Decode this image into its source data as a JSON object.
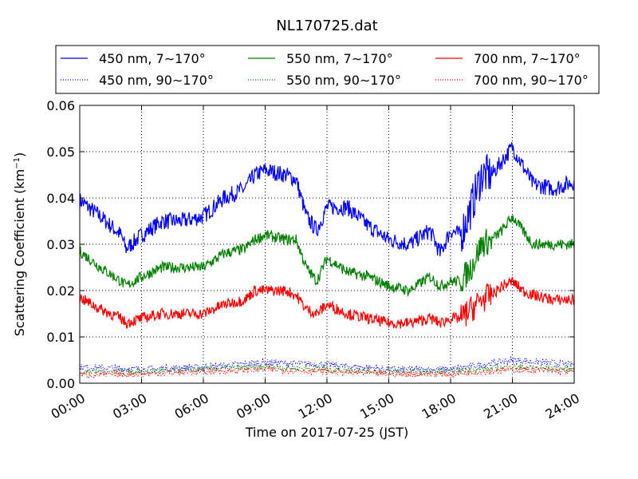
{
  "chart_data": {
    "type": "line",
    "title": "NL170725.dat",
    "xlabel": "Time on 2017-07-25 (JST)",
    "ylabel_main": "Scattering Coefficient (km",
    "ylabel_sup": "−1",
    "ylabel_end": ")",
    "x_hours_range": [
      0,
      24
    ],
    "ylim": [
      0,
      0.06
    ],
    "x_ticks": [
      "00:00",
      "03:00",
      "06:00",
      "09:00",
      "12:00",
      "15:00",
      "18:00",
      "21:00",
      "24:00"
    ],
    "y_ticks": [
      "0.00",
      "0.01",
      "0.02",
      "0.03",
      "0.04",
      "0.05",
      "0.06"
    ],
    "grid": true,
    "legend_position": "top-center above plot",
    "series": [
      {
        "name": "450 nm, 7∼170°",
        "color": "#0000ff",
        "style": "solid",
        "x": [
          "00:00",
          "01:00",
          "02:00",
          "02:15",
          "03:00",
          "04:00",
          "05:00",
          "06:00",
          "07:00",
          "08:00",
          "08:30",
          "09:00",
          "10:00",
          "10:30",
          "11:00",
          "11:30",
          "12:00",
          "13:00",
          "14:00",
          "15:00",
          "16:00",
          "17:00",
          "17:30",
          "18:00",
          "18:30",
          "19:00",
          "19:30",
          "20:00",
          "20:30",
          "21:00",
          "21:30",
          "22:00",
          "23:00",
          "24:00"
        ],
        "y": [
          0.0395,
          0.036,
          0.032,
          0.029,
          0.032,
          0.035,
          0.035,
          0.036,
          0.04,
          0.042,
          0.045,
          0.046,
          0.045,
          0.044,
          0.036,
          0.033,
          0.038,
          0.038,
          0.034,
          0.031,
          0.03,
          0.033,
          0.028,
          0.033,
          0.032,
          0.038,
          0.045,
          0.045,
          0.048,
          0.051,
          0.047,
          0.043,
          0.042,
          0.0435
        ]
      },
      {
        "name": "450 nm, 90∼170°",
        "color": "#0000ff",
        "style": "dotted",
        "x": [
          "00:00",
          "03:00",
          "06:00",
          "09:00",
          "12:00",
          "15:00",
          "18:00",
          "21:00",
          "24:00"
        ],
        "y": [
          0.0035,
          0.003,
          0.0035,
          0.0045,
          0.004,
          0.003,
          0.003,
          0.005,
          0.004
        ]
      },
      {
        "name": "550 nm, 7∼170°",
        "color": "#008000",
        "style": "solid",
        "x": [
          "00:00",
          "01:00",
          "02:00",
          "02:15",
          "03:00",
          "04:00",
          "05:00",
          "06:00",
          "07:00",
          "08:00",
          "08:30",
          "09:00",
          "10:00",
          "10:30",
          "11:00",
          "11:30",
          "12:00",
          "13:00",
          "14:00",
          "15:00",
          "16:00",
          "17:00",
          "17:30",
          "18:00",
          "18:30",
          "19:00",
          "19:30",
          "20:00",
          "20:30",
          "21:00",
          "21:30",
          "22:00",
          "23:00",
          "24:00"
        ],
        "y": [
          0.0285,
          0.025,
          0.022,
          0.021,
          0.023,
          0.025,
          0.025,
          0.025,
          0.028,
          0.029,
          0.031,
          0.032,
          0.031,
          0.031,
          0.025,
          0.022,
          0.027,
          0.024,
          0.023,
          0.021,
          0.02,
          0.023,
          0.021,
          0.022,
          0.022,
          0.025,
          0.03,
          0.031,
          0.033,
          0.036,
          0.033,
          0.03,
          0.03,
          0.03
        ]
      },
      {
        "name": "550 nm, 90∼170°",
        "color": "#008000",
        "style": "dotted",
        "x": [
          "00:00",
          "03:00",
          "06:00",
          "09:00",
          "12:00",
          "15:00",
          "18:00",
          "21:00",
          "24:00"
        ],
        "y": [
          0.0025,
          0.0025,
          0.003,
          0.0035,
          0.003,
          0.0025,
          0.0025,
          0.0035,
          0.003
        ]
      },
      {
        "name": "700 nm, 7∼170°",
        "color": "#ff0000",
        "style": "solid",
        "x": [
          "00:00",
          "01:00",
          "02:00",
          "02:15",
          "03:00",
          "04:00",
          "05:00",
          "06:00",
          "07:00",
          "08:00",
          "08:30",
          "09:00",
          "10:00",
          "10:30",
          "11:00",
          "11:30",
          "12:00",
          "13:00",
          "14:00",
          "15:00",
          "16:00",
          "17:00",
          "17:30",
          "18:00",
          "18:30",
          "19:00",
          "19:30",
          "20:00",
          "20:30",
          "21:00",
          "21:30",
          "22:00",
          "23:00",
          "24:00"
        ],
        "y": [
          0.0185,
          0.016,
          0.014,
          0.013,
          0.014,
          0.015,
          0.015,
          0.015,
          0.017,
          0.018,
          0.02,
          0.02,
          0.02,
          0.019,
          0.016,
          0.015,
          0.017,
          0.015,
          0.014,
          0.013,
          0.013,
          0.014,
          0.013,
          0.014,
          0.014,
          0.016,
          0.018,
          0.019,
          0.021,
          0.022,
          0.02,
          0.019,
          0.018,
          0.018
        ]
      },
      {
        "name": "700 nm, 90∼170°",
        "color": "#ff0000",
        "style": "dotted",
        "x": [
          "00:00",
          "03:00",
          "06:00",
          "09:00",
          "12:00",
          "15:00",
          "18:00",
          "21:00",
          "24:00"
        ],
        "y": [
          0.0018,
          0.002,
          0.0025,
          0.003,
          0.0025,
          0.002,
          0.002,
          0.003,
          0.0025
        ]
      }
    ]
  }
}
